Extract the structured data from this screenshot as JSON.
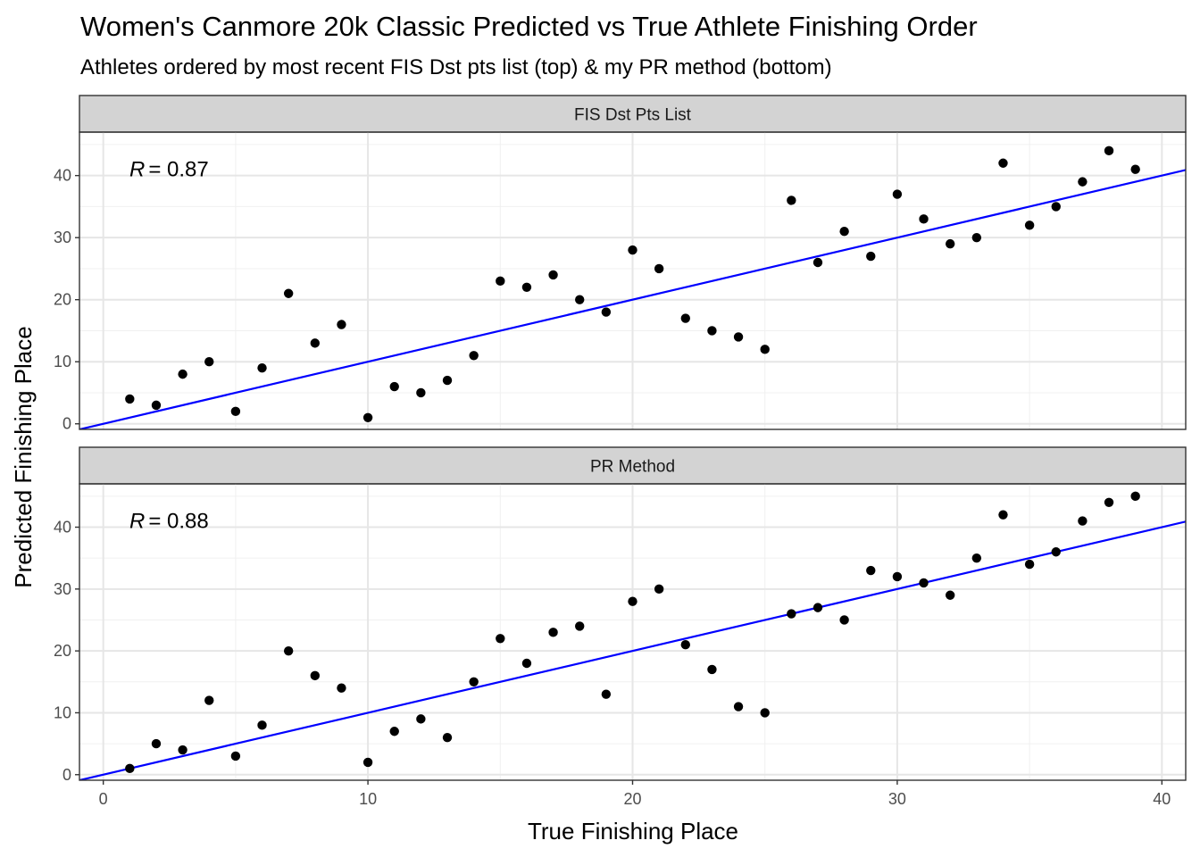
{
  "chart_data": {
    "type": "scatter",
    "title": "Women's Canmore 20k Classic Predicted vs True Athlete Finishing Order",
    "subtitle": "Athletes ordered by most recent FIS Dst pts list (top) & my PR method (bottom)",
    "xlabel": "True Finishing Place",
    "ylabel": "Predicted Finishing Place",
    "xlim": [
      -0.9,
      40.9
    ],
    "ylim": [
      -0.9,
      47
    ],
    "x_ticks": [
      0,
      10,
      20,
      30,
      40
    ],
    "y_ticks": [
      0,
      10,
      20,
      30,
      40
    ],
    "grid": true,
    "reference_line": {
      "slope": 1,
      "intercept": 0,
      "color": "#0000ff"
    },
    "point_color": "#000000",
    "strip_fill": "#d3d3d3",
    "panels": [
      {
        "strip": "FIS Dst Pts List",
        "r_label": "R",
        "r_value": "= 0.87",
        "x": [
          1,
          2,
          3,
          4,
          5,
          6,
          7,
          8,
          9,
          10,
          11,
          12,
          13,
          14,
          15,
          16,
          17,
          18,
          19,
          20,
          21,
          22,
          23,
          24,
          25,
          26,
          27,
          28,
          29,
          30,
          31,
          32,
          33,
          34,
          35,
          36,
          37,
          38,
          39
        ],
        "y": [
          4,
          3,
          8,
          10,
          2,
          9,
          21,
          13,
          16,
          1,
          6,
          5,
          7,
          11,
          23,
          22,
          24,
          20,
          18,
          28,
          25,
          17,
          15,
          14,
          12,
          36,
          26,
          31,
          27,
          37,
          33,
          29,
          30,
          42,
          32,
          35,
          39,
          44,
          41
        ]
      },
      {
        "strip": "PR Method",
        "r_label": "R",
        "r_value": "= 0.88",
        "x": [
          1,
          2,
          3,
          4,
          5,
          6,
          7,
          8,
          9,
          10,
          11,
          12,
          13,
          14,
          15,
          16,
          17,
          18,
          19,
          20,
          21,
          22,
          23,
          24,
          25,
          26,
          27,
          28,
          29,
          30,
          31,
          32,
          33,
          34,
          35,
          36,
          37,
          38,
          39
        ],
        "y": [
          1,
          5,
          4,
          12,
          3,
          8,
          20,
          16,
          14,
          2,
          7,
          9,
          6,
          15,
          22,
          18,
          23,
          24,
          13,
          28,
          30,
          21,
          17,
          11,
          10,
          26,
          27,
          25,
          33,
          32,
          31,
          29,
          35,
          42,
          34,
          36,
          41,
          44,
          45
        ]
      }
    ]
  }
}
